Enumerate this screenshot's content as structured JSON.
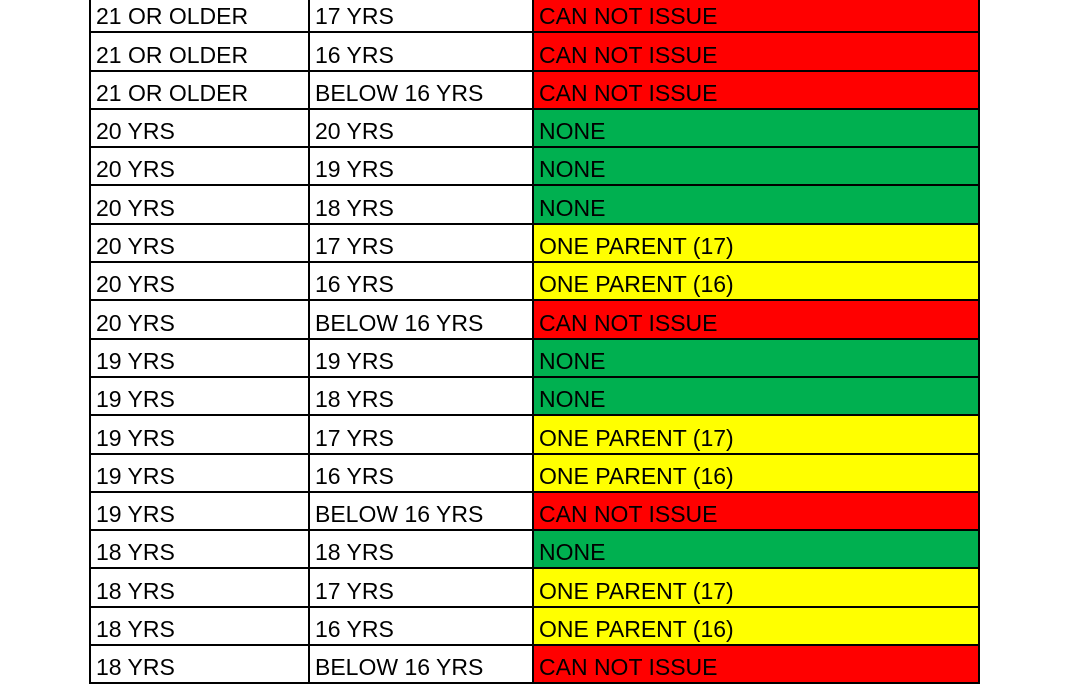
{
  "colors": {
    "CAN NOT ISSUE": "#FF0000",
    "NONE": "#00B050",
    "ONE PARENT (17)": "#FFFF00",
    "ONE PARENT (16)": "#FFFF00"
  },
  "rows": [
    [
      "21 OR OLDER",
      "17 YRS",
      "CAN NOT ISSUE"
    ],
    [
      "21 OR OLDER",
      "16 YRS",
      "CAN NOT ISSUE"
    ],
    [
      "21 OR OLDER",
      "BELOW 16 YRS",
      "CAN NOT ISSUE"
    ],
    [
      "20 YRS",
      "20 YRS",
      "NONE"
    ],
    [
      "20 YRS",
      "19 YRS",
      "NONE"
    ],
    [
      "20 YRS",
      "18 YRS",
      "NONE"
    ],
    [
      "20 YRS",
      "17 YRS",
      "ONE PARENT (17)"
    ],
    [
      "20 YRS",
      "16 YRS",
      "ONE PARENT (16)"
    ],
    [
      "20 YRS",
      "BELOW 16 YRS",
      "CAN NOT ISSUE"
    ],
    [
      "19 YRS",
      "19 YRS",
      "NONE"
    ],
    [
      "19 YRS",
      "18 YRS",
      "NONE"
    ],
    [
      "19 YRS",
      "17 YRS",
      "ONE PARENT (17)"
    ],
    [
      "19 YRS",
      "16 YRS",
      "ONE PARENT (16)"
    ],
    [
      "19 YRS",
      "BELOW 16 YRS",
      "CAN NOT ISSUE"
    ],
    [
      "18 YRS",
      "18 YRS",
      "NONE"
    ],
    [
      "18 YRS",
      "17 YRS",
      "ONE PARENT (17)"
    ],
    [
      "18 YRS",
      "16 YRS",
      "ONE PARENT (16)"
    ],
    [
      "18 YRS",
      "BELOW 16 YRS",
      "CAN NOT ISSUE"
    ]
  ]
}
